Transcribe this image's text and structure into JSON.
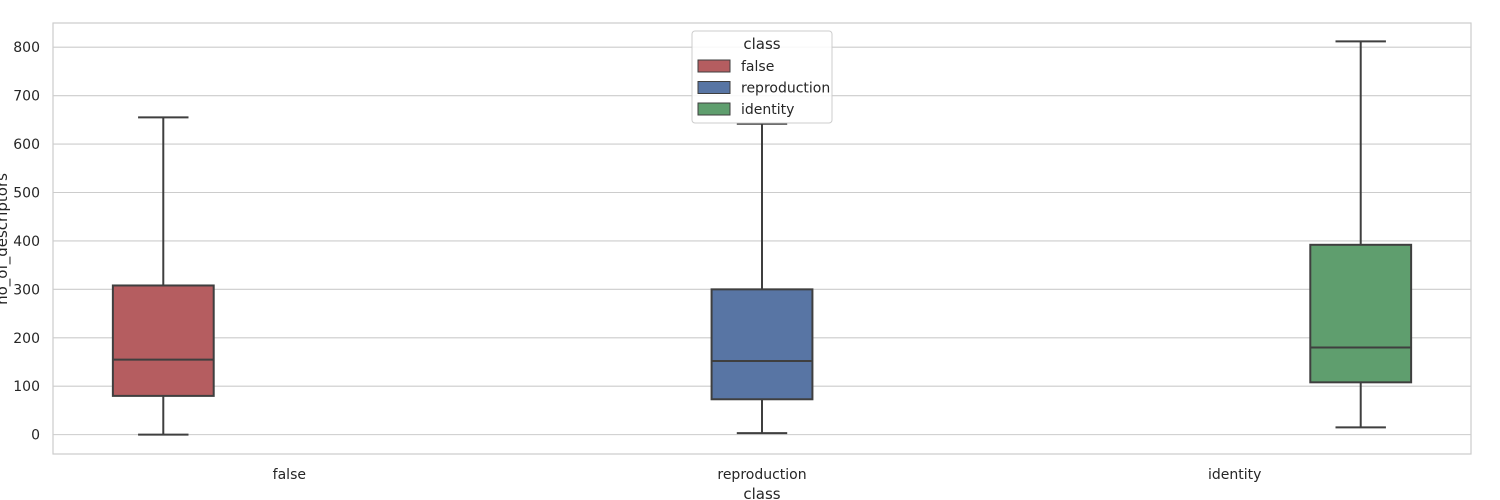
{
  "chart_data": {
    "type": "box",
    "xlabel": "class",
    "ylabel": "no_of_descriptors",
    "ylim": [
      -40,
      850
    ],
    "yticks": [
      0,
      100,
      200,
      300,
      400,
      500,
      600,
      700,
      800
    ],
    "grid": true,
    "categories": [
      "false",
      "reproduction",
      "identity"
    ],
    "series": [
      {
        "name": "false",
        "color": "#b55d60",
        "whisker_low": 0,
        "q1": 80,
        "median": 155,
        "q3": 308,
        "whisker_high": 655
      },
      {
        "name": "reproduction",
        "color": "#5875a4",
        "whisker_low": 3,
        "q1": 73,
        "median": 152,
        "q3": 300,
        "whisker_high": 642
      },
      {
        "name": "identity",
        "color": "#5f9e6e",
        "whisker_low": 15,
        "q1": 108,
        "median": 180,
        "q3": 392,
        "whisker_high": 812
      }
    ],
    "legend": {
      "title": "class",
      "placement": "top-center",
      "entries": [
        "false",
        "reproduction",
        "identity"
      ]
    }
  }
}
